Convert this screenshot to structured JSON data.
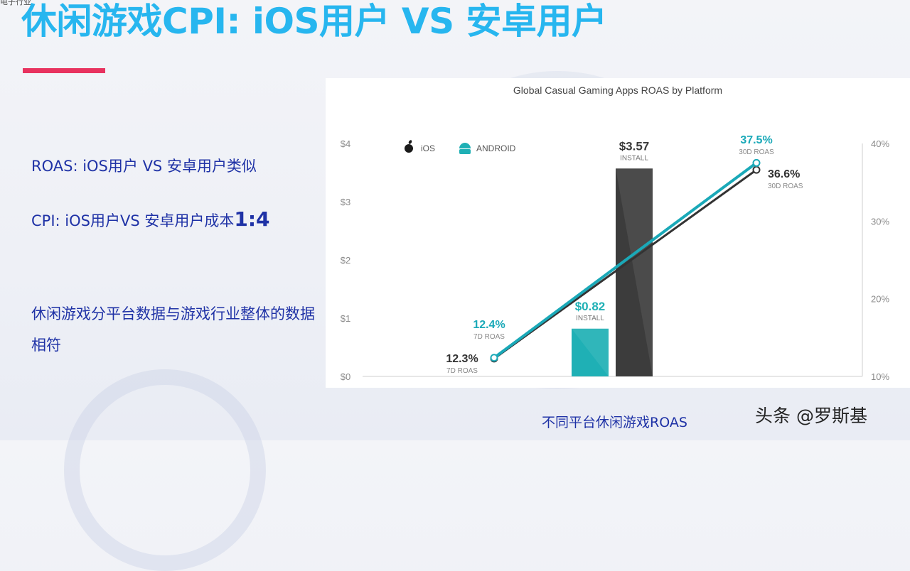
{
  "corner_text": "电子行业",
  "slide": {
    "title": "休闲游戏CPI: iOS用户 VS 安卓用户",
    "bullets": {
      "roas": "ROAS: iOS用户 VS 安卓用户类似",
      "cpi_prefix": "CPI: iOS用户VS 安卓用户成本",
      "cpi_ratio": "1:4",
      "summary": "休闲游戏分平台数据与游戏行业整体的数据相符"
    },
    "caption": "不同平台休闲游戏ROAS",
    "watermark": "头条 @罗斯基"
  },
  "chart_data": {
    "type": "bar",
    "title": "Global Casual Gaming Apps ROAS by Platform",
    "y_left": {
      "ticks": [
        "$0",
        "$1",
        "$2",
        "$3",
        "$4"
      ],
      "range": [
        0,
        4
      ]
    },
    "y_right": {
      "ticks": [
        "10%",
        "20%",
        "30%",
        "40%"
      ],
      "range": [
        10,
        40
      ]
    },
    "legend": {
      "placement": "top-left",
      "items": [
        {
          "name": "iOS",
          "icon": "apple-icon",
          "color": "#1a1a1a"
        },
        {
          "name": "ANDROID",
          "icon": "android-icon",
          "color": "#1fb0b5"
        }
      ]
    },
    "bars": [
      {
        "series": "Android",
        "value": 0.82,
        "label": "$0.82",
        "sublabel": "INSTALL",
        "color": "#1fb0b5"
      },
      {
        "series": "iOS",
        "value": 3.57,
        "label": "$3.57",
        "sublabel": "INSTALL",
        "color": "#3c3c3c"
      }
    ],
    "lines": [
      {
        "series": "iOS",
        "color": "#333333",
        "points": [
          {
            "value": 12.3,
            "label": "12.3%",
            "sublabel": "7D ROAS"
          },
          {
            "value": 36.6,
            "label": "36.6%",
            "sublabel": "30D ROAS"
          }
        ]
      },
      {
        "series": "Android",
        "color": "#1aa9b8",
        "points": [
          {
            "value": 12.4,
            "label": "12.4%",
            "sublabel": "7D ROAS"
          },
          {
            "value": 37.5,
            "label": "37.5%",
            "sublabel": "30D ROAS"
          }
        ]
      }
    ]
  }
}
